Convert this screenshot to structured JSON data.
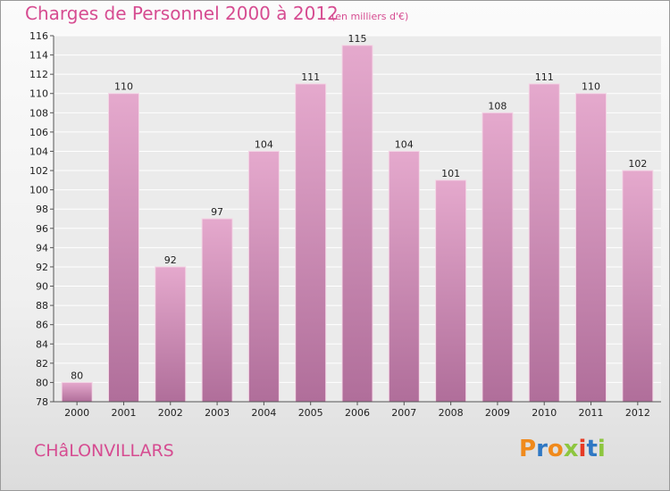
{
  "header": {
    "title": "Charges de Personnel 2000 à 2012",
    "subtitle": "(en milliers d'€)"
  },
  "footer": {
    "commune": "CHâLONVILLARS",
    "logo": "Proxiti",
    "logo_colors": [
      "#f08a1c",
      "#2f78c4",
      "#f08a1c",
      "#8dc63f",
      "#e63a24",
      "#2f78c4",
      "#8dc63f"
    ]
  },
  "chart_data": {
    "type": "bar",
    "title": "Charges de Personnel 2000 à 2012",
    "subtitle": "(en milliers d'€)",
    "xlabel": "",
    "ylabel": "",
    "categories": [
      "2000",
      "2001",
      "2002",
      "2003",
      "2004",
      "2005",
      "2006",
      "2007",
      "2008",
      "2009",
      "2010",
      "2011",
      "2012"
    ],
    "values": [
      80,
      110,
      92,
      97,
      104,
      111,
      115,
      104,
      101,
      108,
      111,
      110,
      102
    ],
    "ylim": [
      78,
      116
    ],
    "yticks": [
      78,
      80,
      82,
      84,
      86,
      88,
      90,
      92,
      94,
      96,
      98,
      100,
      102,
      104,
      106,
      108,
      110,
      112,
      114,
      116
    ],
    "grid": true,
    "legend": "none",
    "bar_color_top": "#e5a9cd",
    "bar_color_bottom": "#b06e9a",
    "grid_color": "#ffffff"
  }
}
